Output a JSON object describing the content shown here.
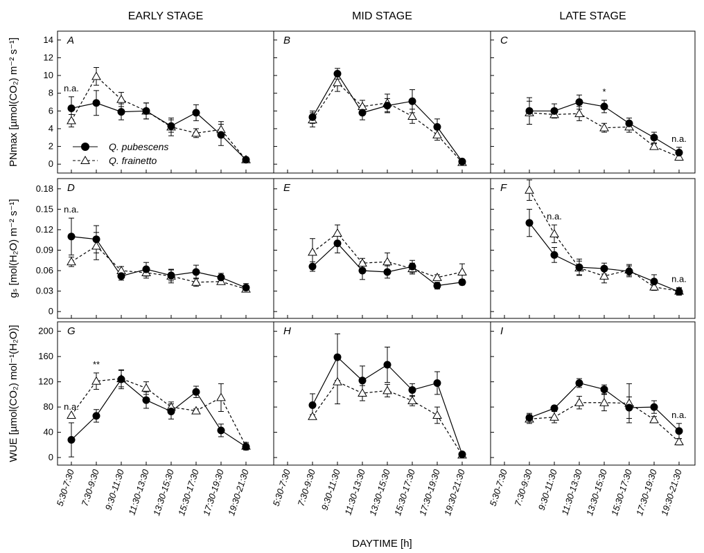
{
  "chart_data": [
    {
      "type": "line",
      "title": "EARLY STAGE",
      "panel_label": "A",
      "ylabel": "PNmax [µmol(CO₂) m⁻² s⁻¹]",
      "ylim": [
        -1,
        15
      ],
      "yticks": [
        0,
        2,
        4,
        6,
        8,
        10,
        12,
        14
      ],
      "legend": "lower left",
      "series": [
        {
          "name": "Q. pubescens",
          "color": "#000000",
          "marker": "circle",
          "dashed": false,
          "values": [
            6.3,
            6.9,
            5.9,
            6.0,
            4.3,
            5.8,
            3.3,
            0.5
          ],
          "errors": [
            1.3,
            1.4,
            0.9,
            0.9,
            0.7,
            0.9,
            1.2,
            0.2
          ]
        },
        {
          "name": "Q. frainetto",
          "color": "#000000",
          "marker": "triangle",
          "dashed": true,
          "values": [
            4.9,
            9.9,
            7.3,
            6.0,
            4.2,
            3.5,
            3.9,
            0.5
          ],
          "errors": [
            0.7,
            1.0,
            0.8,
            0.9,
            1.0,
            0.5,
            0.9,
            0.2
          ]
        }
      ],
      "annotations": [
        {
          "text": "n.a.",
          "category": "5:30-7:30"
        }
      ]
    },
    {
      "type": "line",
      "title": "MID STAGE",
      "panel_label": "B",
      "ylim": [
        -1,
        15
      ],
      "yticks": [
        0,
        2,
        4,
        6,
        8,
        10,
        12,
        14
      ],
      "series": [
        {
          "color": "#000000",
          "marker": "circle",
          "dashed": false,
          "values": [
            null,
            5.3,
            10.2,
            5.8,
            6.6,
            7.1,
            4.2,
            0.3
          ],
          "errors": [
            null,
            0.7,
            0.6,
            0.8,
            0.8,
            1.3,
            0.9,
            0.2
          ]
        },
        {
          "color": "#000000",
          "marker": "triangle",
          "dashed": true,
          "values": [
            null,
            5.0,
            9.2,
            6.5,
            6.9,
            5.4,
            3.3,
            0.2
          ],
          "errors": [
            null,
            0.8,
            1.0,
            0.7,
            1.0,
            0.8,
            0.6,
            0.2
          ]
        }
      ],
      "annotations": []
    },
    {
      "type": "line",
      "title": "LATE STAGE",
      "panel_label": "C",
      "ylim": [
        -1,
        15
      ],
      "yticks": [
        0,
        2,
        4,
        6,
        8,
        10,
        12,
        14
      ],
      "series": [
        {
          "color": "#000000",
          "marker": "circle",
          "dashed": false,
          "values": [
            null,
            6.0,
            6.0,
            7.0,
            6.5,
            4.6,
            3.0,
            1.3
          ],
          "errors": [
            null,
            1.5,
            0.8,
            0.8,
            0.7,
            0.6,
            0.6,
            0.6
          ]
        },
        {
          "color": "#000000",
          "marker": "triangle",
          "dashed": true,
          "values": [
            null,
            5.8,
            5.6,
            5.7,
            4.1,
            4.2,
            2.0,
            0.8
          ],
          "errors": [
            null,
            1.3,
            0.4,
            0.8,
            0.5,
            0.6,
            0.3,
            0.3
          ]
        }
      ],
      "annotations": [
        {
          "text": "*",
          "category": "13:30-15:30"
        },
        {
          "text": "n.a.",
          "category": "19:30-21:30"
        }
      ]
    },
    {
      "type": "line",
      "panel_label": "D",
      "ylabel": "gₛ [mol(H₂O) m⁻² s⁻¹]",
      "ylim": [
        -0.01,
        0.195
      ],
      "yticks": [
        0,
        0.03,
        0.06,
        0.09,
        0.12,
        0.15,
        0.18
      ],
      "series": [
        {
          "color": "#000000",
          "marker": "circle",
          "dashed": false,
          "values": [
            0.11,
            0.106,
            0.052,
            0.062,
            0.053,
            0.058,
            0.05,
            0.035
          ],
          "errors": [
            0.027,
            0.02,
            0.006,
            0.01,
            0.008,
            0.01,
            0.006,
            0.006
          ]
        },
        {
          "color": "#000000",
          "marker": "triangle",
          "dashed": true,
          "values": [
            0.073,
            0.096,
            0.06,
            0.057,
            0.052,
            0.043,
            0.044,
            0.033
          ],
          "errors": [
            0.007,
            0.02,
            0.006,
            0.008,
            0.01,
            0.006,
            0.004,
            0.004
          ]
        }
      ],
      "annotations": [
        {
          "text": "n.a.",
          "category": "5:30-7:30"
        }
      ]
    },
    {
      "type": "line",
      "panel_label": "E",
      "ylim": [
        -0.01,
        0.195
      ],
      "yticks": [
        0,
        0.03,
        0.06,
        0.09,
        0.12,
        0.15,
        0.18
      ],
      "series": [
        {
          "color": "#000000",
          "marker": "circle",
          "dashed": false,
          "values": [
            null,
            0.066,
            0.1,
            0.06,
            0.058,
            0.066,
            0.038,
            0.043
          ],
          "errors": [
            null,
            0.007,
            0.014,
            0.013,
            0.009,
            0.009,
            0.005,
            0.004
          ]
        },
        {
          "color": "#000000",
          "marker": "triangle",
          "dashed": true,
          "values": [
            null,
            0.087,
            0.115,
            0.071,
            0.073,
            0.063,
            0.05,
            0.058
          ],
          "errors": [
            null,
            0.02,
            0.012,
            0.007,
            0.013,
            0.008,
            0.004,
            0.012
          ]
        }
      ],
      "annotations": []
    },
    {
      "type": "line",
      "panel_label": "F",
      "ylim": [
        -0.01,
        0.195
      ],
      "yticks": [
        0,
        0.03,
        0.06,
        0.09,
        0.12,
        0.15,
        0.18
      ],
      "series": [
        {
          "color": "#000000",
          "marker": "circle",
          "dashed": false,
          "values": [
            null,
            0.13,
            0.083,
            0.065,
            0.063,
            0.059,
            0.044,
            0.029
          ],
          "errors": [
            null,
            0.02,
            0.011,
            0.012,
            0.008,
            0.008,
            0.01,
            0.005
          ]
        },
        {
          "color": "#000000",
          "marker": "triangle",
          "dashed": true,
          "values": [
            null,
            0.178,
            0.114,
            0.064,
            0.052,
            0.061,
            0.036,
            0.03
          ],
          "errors": [
            null,
            0.015,
            0.013,
            0.01,
            0.01,
            0.008,
            0.005,
            0.005
          ]
        }
      ],
      "annotations": [
        {
          "text": "n.a.",
          "category": "9:30-11:30"
        },
        {
          "text": "n.a.",
          "category": "19:30-21:30"
        }
      ]
    },
    {
      "type": "line",
      "panel_label": "G",
      "ylabel": "WUE [µmol(CO₂) mol⁻¹(H₂O)]",
      "ylim": [
        -12,
        215
      ],
      "yticks": [
        0,
        40,
        80,
        120,
        160,
        200
      ],
      "categories": [
        "5:30-7:30",
        "7:30-9:30",
        "9:30-11:30",
        "11:30-13:30",
        "13:30-15:30",
        "15:30-17:30",
        "17:30-19:30",
        "19:30-21:30"
      ],
      "series": [
        {
          "color": "#000000",
          "marker": "circle",
          "dashed": false,
          "values": [
            28,
            66,
            124,
            91,
            73,
            104,
            43,
            17
          ],
          "errors": [
            27,
            10,
            15,
            13,
            12,
            9,
            10,
            5
          ]
        },
        {
          "color": "#000000",
          "marker": "triangle",
          "dashed": true,
          "values": [
            67,
            121,
            125,
            110,
            80,
            74,
            95,
            18
          ],
          "errors": [
            0,
            13,
            13,
            10,
            8,
            3,
            22,
            6
          ]
        }
      ],
      "annotations": [
        {
          "text": "n.a.",
          "category": "5:30-7:30"
        },
        {
          "text": "**",
          "category": "7:30-9:30"
        }
      ]
    },
    {
      "type": "line",
      "panel_label": "H",
      "xlabel": "DAYTIME [h]",
      "ylim": [
        -12,
        215
      ],
      "yticks": [
        0,
        40,
        80,
        120,
        160,
        200
      ],
      "categories": [
        "5:30-7:30",
        "7:30-9:30",
        "9:30-11:30",
        "11:30-13:30",
        "13:30-15:30",
        "15:30-17:30",
        "17:30-19:30",
        "19:30-21:30"
      ],
      "series": [
        {
          "color": "#000000",
          "marker": "circle",
          "dashed": false,
          "values": [
            null,
            83,
            159,
            122,
            147,
            107,
            118,
            5
          ],
          "errors": [
            null,
            18,
            37,
            23,
            28,
            10,
            18,
            3
          ]
        },
        {
          "color": "#000000",
          "marker": "triangle",
          "dashed": true,
          "values": [
            null,
            65,
            120,
            102,
            106,
            90,
            67,
            4
          ],
          "errors": [
            null,
            3,
            35,
            12,
            10,
            8,
            13,
            2
          ]
        }
      ],
      "annotations": []
    },
    {
      "type": "line",
      "panel_label": "I",
      "ylim": [
        -12,
        215
      ],
      "yticks": [
        0,
        40,
        80,
        120,
        160,
        200
      ],
      "categories": [
        "5:30-7:30",
        "7:30-9:30",
        "9:30-11:30",
        "11:30-13:30",
        "13:30-15:30",
        "15:30-17:30",
        "17:30-19:30",
        "19:30-21:30"
      ],
      "series": [
        {
          "color": "#000000",
          "marker": "circle",
          "dashed": false,
          "values": [
            null,
            63,
            78,
            118,
            108,
            79,
            80,
            42
          ],
          "errors": [
            null,
            7,
            4,
            7,
            7,
            17,
            10,
            12
          ]
        },
        {
          "color": "#000000",
          "marker": "triangle",
          "dashed": true,
          "values": [
            null,
            61,
            64,
            87,
            87,
            86,
            60,
            25
          ],
          "errors": [
            null,
            7,
            9,
            10,
            13,
            31,
            5,
            5
          ]
        }
      ],
      "annotations": [
        {
          "text": "n.a.",
          "category": "19:30-21:30"
        }
      ]
    }
  ]
}
